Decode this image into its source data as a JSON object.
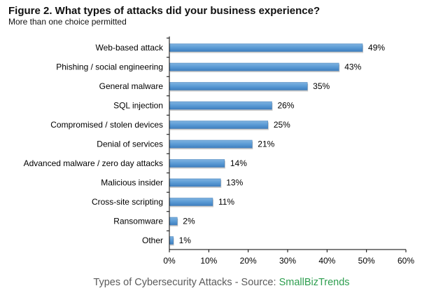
{
  "figure": {
    "title": "Figure 2. What types of attacks did your business experience?",
    "subtitle": "More than one choice permitted"
  },
  "caption": {
    "text": "Types of Cybersecurity Attacks - Source: ",
    "link": "SmallBizTrends",
    "link_color": "#2e9e4f"
  },
  "chart_data": {
    "type": "bar",
    "orientation": "horizontal",
    "title": "Figure 2. What types of attacks did your business experience?",
    "subtitle": "More than one choice permitted",
    "categories": [
      "Web-based attack",
      "Phishing / social engineering",
      "General malware",
      "SQL injection",
      "Compromised / stolen devices",
      "Denial of services",
      "Advanced malware / zero day attacks",
      "Malicious insider",
      "Cross-site scripting",
      "Ransomware",
      "Other"
    ],
    "values": [
      49,
      43,
      35,
      26,
      25,
      21,
      14,
      13,
      11,
      2,
      1
    ],
    "value_labels": [
      "49%",
      "43%",
      "35%",
      "26%",
      "25%",
      "21%",
      "14%",
      "13%",
      "11%",
      "2%",
      "1%"
    ],
    "xlim": [
      0,
      60
    ],
    "xticks": [
      0,
      10,
      20,
      30,
      40,
      50,
      60
    ],
    "xtick_labels": [
      "0%",
      "10%",
      "20%",
      "30%",
      "40%",
      "50%",
      "60%"
    ],
    "xlabel": "",
    "ylabel": "",
    "grid": false,
    "bar_color": "#5b9bd5"
  }
}
